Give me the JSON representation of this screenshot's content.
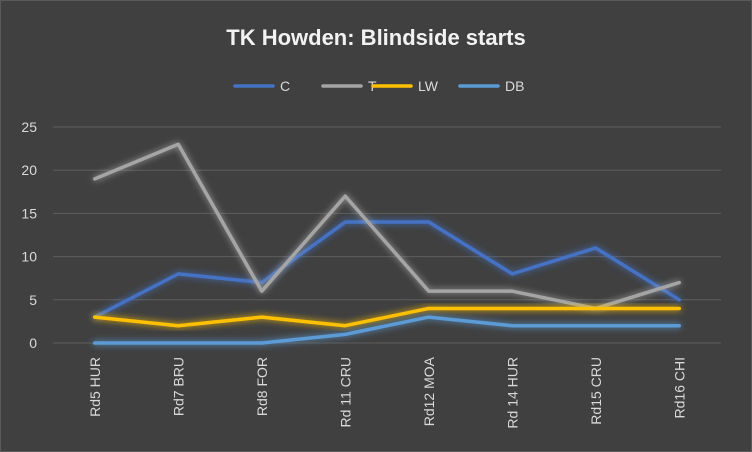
{
  "chart_data": {
    "type": "line",
    "title": "TK Howden: Blindside starts",
    "xlabel": "",
    "ylabel": "",
    "ylim": [
      0,
      25
    ],
    "yticks": [
      0,
      5,
      10,
      15,
      20,
      25
    ],
    "grid": true,
    "legend_position": "top",
    "categories": [
      "Rd5 HUR",
      "Rd7 BRU",
      "Rd8 FOR",
      "Rd 11 CRU",
      "Rd12 MOA",
      "Rd 14 HUR",
      "Rd15 CRU",
      "Rd16 CHI"
    ],
    "series": [
      {
        "name": "C",
        "color": "#4472c4",
        "values": [
          3,
          8,
          7,
          14,
          14,
          8,
          11,
          5
        ]
      },
      {
        "name": "T",
        "color": "#a5a5a5",
        "values": [
          19,
          23,
          6,
          17,
          6,
          6,
          4,
          7
        ]
      },
      {
        "name": "LW",
        "color": "#ffc000",
        "values": [
          3,
          2,
          3,
          2,
          4,
          4,
          4,
          4
        ]
      },
      {
        "name": "DB",
        "color": "#5b9bd5",
        "values": [
          0,
          0,
          0,
          1,
          3,
          2,
          2,
          2
        ]
      }
    ]
  }
}
